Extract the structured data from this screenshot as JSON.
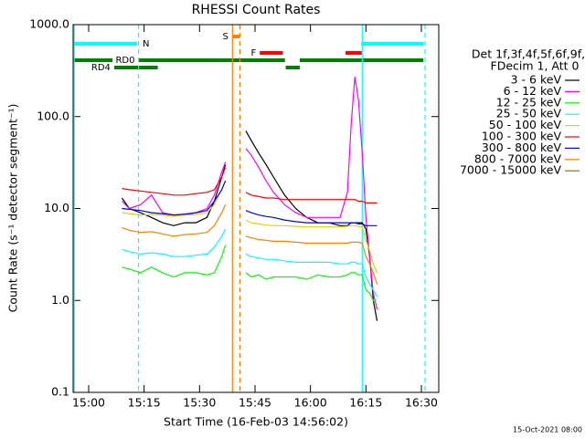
{
  "chart_data": {
    "type": "line",
    "title": "RHESSI Count Rates",
    "x_label": "Start Time (16-Feb-03 14:56:02)",
    "y_label": "Count Rate (s⁻¹ detector segment⁻¹)",
    "footer": "15-Oct-2021 08:00",
    "log_y": true,
    "xlim": [
      895.8,
      994.7
    ],
    "ylim": [
      0.1,
      1000
    ],
    "xticks": [
      {
        "value": 900,
        "label": "15:00"
      },
      {
        "value": 915,
        "label": "15:15"
      },
      {
        "value": 930,
        "label": "15:30"
      },
      {
        "value": 945,
        "label": "15:45"
      },
      {
        "value": 960,
        "label": "16:00"
      },
      {
        "value": 975,
        "label": "16:15"
      },
      {
        "value": 990,
        "label": "16:30"
      }
    ],
    "yticks": [
      {
        "value": 0.1,
        "label": "0.1"
      },
      {
        "value": 1,
        "label": "1.0"
      },
      {
        "value": 10,
        "label": "10.0"
      },
      {
        "value": 100,
        "label": "100.0"
      },
      {
        "value": 1000,
        "label": "1000.0"
      }
    ],
    "legend_title": [
      "Det 1f,3f,4f,5f,6f,9f,",
      "FDecim 1, Att 0"
    ],
    "x": [
      909,
      911,
      914,
      917,
      920,
      923,
      926,
      929,
      932,
      934,
      936,
      937,
      939,
      942.5,
      944,
      946,
      948,
      950,
      953,
      956,
      959,
      962,
      965,
      968,
      970,
      971,
      972,
      973,
      974,
      975,
      976,
      977,
      978
    ],
    "series": [
      {
        "name": "3 - 6 keV",
        "color": "#000000",
        "values": [
          13,
          10,
          9,
          8,
          7,
          6.5,
          7,
          7,
          8,
          12,
          22,
          30,
          null,
          70,
          55,
          40,
          30,
          22,
          14,
          10,
          8,
          7,
          7,
          6.5,
          6.5,
          7,
          7,
          7,
          7,
          6,
          3,
          1,
          0.6
        ]
      },
      {
        "name": "6 - 12 keV",
        "color": "#ff00ff",
        "values": [
          12,
          10,
          11,
          14,
          9,
          8.5,
          8.5,
          9,
          10,
          14,
          25,
          32,
          null,
          45,
          38,
          28,
          20,
          15,
          11,
          9,
          8,
          8,
          8,
          8,
          15,
          80,
          270,
          150,
          40,
          8,
          3,
          1.2,
          0.8
        ]
      },
      {
        "name": "12 - 25 keV",
        "color": "#00ff00",
        "values": [
          2.3,
          2.2,
          2.0,
          2.3,
          2.0,
          1.8,
          2.0,
          2.0,
          1.9,
          2.0,
          3,
          4,
          null,
          2.0,
          1.8,
          1.9,
          1.7,
          1.8,
          1.8,
          1.8,
          1.7,
          1.9,
          1.8,
          1.8,
          1.9,
          2.0,
          2.0,
          1.9,
          1.9,
          1.3,
          1.2,
          1.0,
          0.9
        ]
      },
      {
        "name": "25 - 50 keV",
        "color": "#00ffff",
        "values": [
          3.6,
          3.4,
          3.2,
          3.3,
          3.2,
          3.0,
          3.0,
          3.1,
          3.2,
          3.8,
          5,
          6,
          null,
          3.2,
          3.0,
          2.9,
          2.8,
          2.8,
          2.7,
          2.6,
          2.6,
          2.6,
          2.6,
          2.5,
          2.5,
          2.6,
          2.6,
          2.5,
          2.5,
          1.8,
          1.5,
          1.3,
          1.1
        ]
      },
      {
        "name": "50 - 100 keV",
        "color": "#d8d800",
        "values": [
          9,
          8.8,
          8.5,
          8.6,
          8.5,
          8.2,
          8.5,
          8.6,
          9,
          11,
          16,
          20,
          null,
          7.5,
          7,
          6.8,
          6.6,
          6.5,
          6.5,
          6.4,
          6.3,
          6.3,
          6.3,
          6.3,
          6.4,
          6.5,
          6.5,
          6.4,
          6.3,
          4.5,
          3.5,
          2.5,
          2
        ]
      },
      {
        "name": "100 - 300 keV",
        "color": "#ff0000",
        "values": [
          16.5,
          16,
          15.5,
          15,
          14.5,
          14,
          14,
          14.5,
          15,
          16,
          22,
          28,
          null,
          15,
          14,
          13.5,
          13,
          13,
          12.5,
          12.5,
          12.5,
          12.5,
          12.5,
          12.5,
          12.5,
          12.5,
          12.5,
          12,
          12,
          11.5,
          11.5,
          11.5,
          11.5
        ]
      },
      {
        "name": "300 - 800 keV",
        "color": "#0000ff",
        "values": [
          10,
          9.8,
          9.5,
          9.0,
          8.8,
          8.5,
          8.7,
          9,
          9.5,
          12,
          16,
          20,
          null,
          9.5,
          9,
          8.5,
          8.2,
          8,
          7.5,
          7.2,
          7,
          7,
          7,
          7,
          7,
          7,
          7,
          6.8,
          6.8,
          6.5,
          6.5,
          6.5,
          6.5
        ]
      },
      {
        "name": "800 - 7000 keV",
        "color": "#ff8000",
        "values": [
          6.2,
          5.8,
          5.5,
          5.6,
          5.3,
          5.0,
          5.2,
          5.3,
          5.5,
          6.5,
          9,
          11,
          null,
          5,
          4.8,
          4.6,
          4.5,
          4.4,
          4.4,
          4.3,
          4.2,
          4.2,
          4.2,
          4.2,
          4.2,
          4.3,
          4.3,
          4.3,
          4.2,
          3,
          2.5,
          2,
          1.5
        ]
      },
      {
        "name": "7000 - 15000 keV",
        "color": "#808000",
        "values": [
          null,
          null,
          null,
          null,
          null,
          null,
          null,
          null,
          null,
          null,
          null,
          null,
          null,
          null,
          null,
          null,
          null,
          null,
          null,
          null,
          null,
          null,
          null,
          null,
          null,
          null,
          null,
          null,
          null,
          null,
          null,
          null,
          null
        ]
      }
    ],
    "vlines": [
      {
        "x": 896.1,
        "color": "#00ffff",
        "dashed": false
      },
      {
        "x": 913.5,
        "color": "#00ffff",
        "dashed": true
      },
      {
        "x": 938.9,
        "color": "#ff8000",
        "dashed": false
      },
      {
        "x": 940.9,
        "color": "#ff8000",
        "dashed": true
      },
      {
        "x": 974,
        "color": "#00ffff",
        "dashed": false
      },
      {
        "x": 991,
        "color": "#00ffff",
        "dashed": true
      }
    ],
    "flags": [
      {
        "label": "N",
        "color": "#00ffff",
        "intervals": [
          [
            895.8,
            913.1
          ],
          [
            973.7,
            990.5
          ]
        ]
      },
      {
        "label": "S",
        "color": "#ff8000",
        "intervals": [
          [
            938.8,
            940.8
          ]
        ]
      },
      {
        "label": "F",
        "color": "#ff0000",
        "intervals": [
          [
            946.3,
            952.5
          ],
          [
            969.5,
            973.9
          ]
        ]
      },
      {
        "label": "RD0",
        "color": "#008000",
        "intervals": [
          [
            895.8,
            953.1
          ],
          [
            957.1,
            990.5
          ]
        ]
      },
      {
        "label": "RD4",
        "color": "#008000",
        "intervals": [
          [
            906.9,
            918.7
          ],
          [
            953.3,
            957.1
          ]
        ]
      }
    ]
  }
}
